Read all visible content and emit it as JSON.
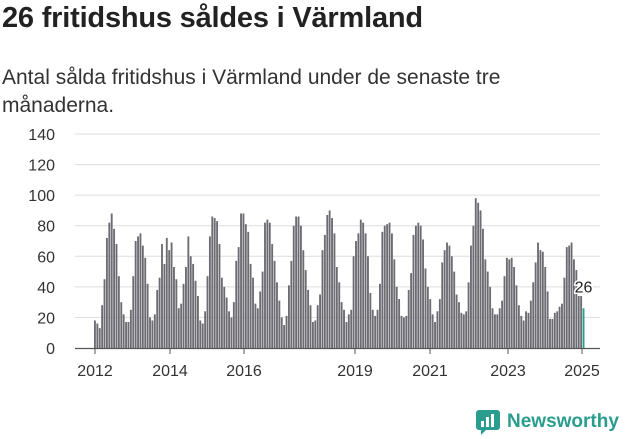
{
  "title": "26 fritidshus såldes i Värmland",
  "subtitle": "Antal sålda fritidshus i Värmland under de senaste tre månaderna.",
  "brand": {
    "name": "Newsworthy",
    "color": "#2a9d8f",
    "icon": "newsworthy-logo-icon"
  },
  "chart_data": {
    "type": "bar",
    "title": "26 fritidshus såldes i Värmland",
    "xlabel": "",
    "ylabel": "",
    "ylim": [
      0,
      140
    ],
    "yticks": [
      0,
      20,
      40,
      60,
      80,
      100,
      120,
      140
    ],
    "xticks": [
      "2012",
      "2014",
      "2016",
      "2019",
      "2021",
      "2023",
      "2025"
    ],
    "grid": true,
    "legend": "none",
    "colors": {
      "bar": "#6d6c73",
      "highlight": "#2a9d8f",
      "grid": "#dddddd",
      "axis": "#555555"
    },
    "annotation": {
      "label": "26",
      "value": 26,
      "period": "2025"
    },
    "series": [
      {
        "values": [
          18,
          16,
          13,
          28,
          45,
          72,
          82,
          88,
          78,
          68,
          47,
          30,
          22,
          17,
          17,
          25,
          47,
          70,
          73,
          75,
          67,
          59,
          42,
          20,
          18,
          22,
          38,
          46,
          68,
          55,
          72,
          64,
          69,
          53,
          45,
          26,
          29,
          42,
          53,
          73,
          60,
          55,
          44,
          34,
          18,
          16,
          24,
          47,
          73,
          86,
          85,
          83,
          68,
          46,
          40,
          33,
          24,
          20,
          30,
          57,
          66,
          88,
          88,
          81,
          76,
          55,
          46,
          29,
          26,
          37,
          50,
          82,
          84,
          82,
          68,
          57,
          43,
          31,
          20,
          15,
          21,
          41,
          57,
          80,
          86,
          86,
          80,
          64,
          51,
          38,
          28,
          17,
          18,
          28,
          35,
          64,
          74,
          87,
          90,
          85,
          75,
          53,
          43,
          30,
          25,
          17,
          22,
          25,
          60,
          70,
          75,
          84,
          82,
          75,
          60,
          36,
          25,
          21,
          25,
          42,
          76,
          80,
          81,
          82,
          75,
          58,
          40,
          32,
          21,
          20,
          21,
          38,
          49,
          74,
          80,
          82,
          80,
          71,
          52,
          40,
          32,
          22,
          17,
          24,
          32,
          56,
          64,
          69,
          67,
          60,
          50,
          35,
          30,
          23,
          22,
          24,
          43,
          67,
          80,
          98,
          95,
          90,
          78,
          58,
          50,
          40,
          26,
          22,
          22,
          26,
          31,
          47,
          59,
          58,
          59,
          53,
          41,
          28,
          21,
          18,
          24,
          23,
          31,
          43,
          56,
          69,
          64,
          63,
          53,
          37,
          19,
          19,
          23,
          24,
          27,
          29,
          46,
          66,
          67,
          69,
          58,
          51,
          34,
          34,
          26
        ],
        "highlight_last": 1
      }
    ]
  }
}
